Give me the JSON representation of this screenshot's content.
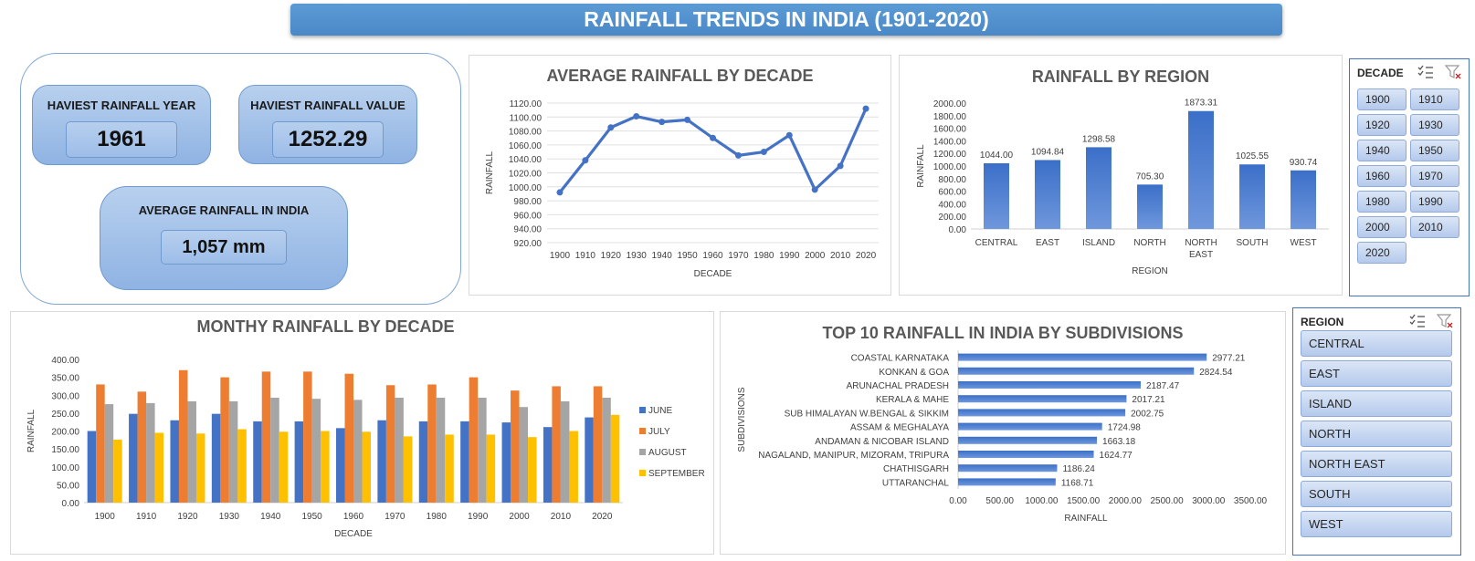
{
  "dashboard": {
    "title": "RAINFALL TRENDS IN INDIA (1901-2020)"
  },
  "kpis": {
    "heaviest_year_label": "HAVIEST RAINFALL YEAR",
    "heaviest_year_value": "1961",
    "heaviest_value_label": "HAVIEST RAINFALL VALUE",
    "heaviest_value_value": "1252.29",
    "average_label": "AVERAGE RAINFALL IN INDIA",
    "average_value": "1,057 mm"
  },
  "slicers": {
    "decade": {
      "header": "DECADE",
      "items": [
        "1900",
        "1910",
        "1920",
        "1930",
        "1940",
        "1950",
        "1960",
        "1970",
        "1980",
        "1990",
        "2000",
        "2010",
        "2020"
      ]
    },
    "region": {
      "header": "REGION",
      "items": [
        "CENTRAL",
        "EAST",
        "ISLAND",
        "NORTH",
        "NORTH EAST",
        "SOUTH",
        "WEST"
      ]
    }
  },
  "colors": {
    "series_blue": "#4472c4",
    "series_orange": "#ed7d31",
    "series_gray": "#a5a5a5",
    "series_yellow": "#ffc000",
    "line_blue": "#4472c4"
  },
  "chart_data": [
    {
      "id": "avg_by_decade",
      "type": "line",
      "title": "AVERAGE RAINFALL BY DECADE",
      "xlabel": "DECADE",
      "ylabel": "RAINFALL",
      "categories": [
        "1900",
        "1910",
        "1920",
        "1930",
        "1940",
        "1950",
        "1960",
        "1970",
        "1980",
        "1990",
        "2000",
        "2010",
        "2020"
      ],
      "values": [
        992,
        1038,
        1085,
        1101,
        1093,
        1096,
        1070,
        1045,
        1050,
        1074,
        996,
        1030,
        1112
      ],
      "ylim": [
        920,
        1120
      ],
      "yticks": [
        "920.00",
        "940.00",
        "960.00",
        "980.00",
        "1000.00",
        "1020.00",
        "1040.00",
        "1060.00",
        "1080.00",
        "1100.00",
        "1120.00"
      ],
      "grid": true
    },
    {
      "id": "by_region",
      "type": "bar",
      "title": "RAINFALL BY REGION",
      "xlabel": "REGION",
      "ylabel": "RAINFALL",
      "categories": [
        "CENTRAL",
        "EAST",
        "ISLAND",
        "NORTH",
        "NORTH EAST",
        "SOUTH",
        "WEST"
      ],
      "values": [
        1044.0,
        1094.84,
        1298.58,
        705.3,
        1873.31,
        1025.55,
        930.74
      ],
      "data_labels": [
        "1044.00",
        "1094.84",
        "1298.58",
        "705.30",
        "1873.31",
        "1025.55",
        "930.74"
      ],
      "ylim": [
        0,
        2000
      ],
      "yticks": [
        "0.00",
        "200.00",
        "400.00",
        "600.00",
        "800.00",
        "1000.00",
        "1200.00",
        "1400.00",
        "1600.00",
        "1800.00",
        "2000.00"
      ]
    },
    {
      "id": "monthly_by_decade",
      "type": "bar",
      "title": "MONTHY RAINFALL BY DECADE",
      "xlabel": "DECADE",
      "ylabel": "RAINFALL",
      "categories": [
        "1900",
        "1910",
        "1920",
        "1930",
        "1940",
        "1950",
        "1960",
        "1970",
        "1980",
        "1990",
        "2000",
        "2010",
        "2020"
      ],
      "series": [
        {
          "name": "JUNE",
          "values": [
            200,
            248,
            230,
            248,
            227,
            227,
            208,
            230,
            227,
            227,
            224,
            211,
            238
          ]
        },
        {
          "name": "JULY",
          "values": [
            330,
            310,
            370,
            350,
            366,
            366,
            360,
            328,
            330,
            350,
            313,
            325,
            325
          ]
        },
        {
          "name": "AUGUST",
          "values": [
            275,
            278,
            283,
            283,
            293,
            290,
            287,
            293,
            293,
            293,
            267,
            283,
            293
          ]
        },
        {
          "name": "SEPTEMBER",
          "values": [
            176,
            195,
            193,
            205,
            198,
            200,
            198,
            185,
            190,
            190,
            183,
            200,
            245
          ]
        }
      ],
      "ylim": [
        0,
        400
      ],
      "yticks": [
        "0.00",
        "50.00",
        "100.00",
        "150.00",
        "200.00",
        "250.00",
        "300.00",
        "350.00",
        "400.00"
      ],
      "legend": "right"
    },
    {
      "id": "top10_subdivisions",
      "type": "bar",
      "orientation": "horizontal",
      "title": "TOP 10 RAINFALL IN INDIA BY SUBDIVISIONS",
      "xlabel": "RAINFALL",
      "ylabel": "SUBDIVISIONS",
      "categories": [
        "COASTAL KARNATAKA",
        "KONKAN & GOA",
        "ARUNACHAL PRADESH",
        "KERALA & MAHE",
        "SUB HIMALAYAN W.BENGAL & SIKKIM",
        "ASSAM & MEGHALAYA",
        "ANDAMAN & NICOBAR ISLAND",
        "NAGALAND, MANIPUR, MIZORAM, TRIPURA",
        "CHATHISGARH",
        "UTTARANCHAL"
      ],
      "values": [
        2977.21,
        2824.54,
        2187.47,
        2017.21,
        2002.75,
        1724.98,
        1663.18,
        1624.77,
        1186.24,
        1168.71
      ],
      "data_labels": [
        "2977.21",
        "2824.54",
        "2187.47",
        "2017.21",
        "2002.75",
        "1724.98",
        "1663.18",
        "1624.77",
        "1186.24",
        "1168.71"
      ],
      "xlim": [
        0,
        3500
      ],
      "xticks": [
        "0.00",
        "500.00",
        "1000.00",
        "1500.00",
        "2000.00",
        "2500.00",
        "3000.00",
        "3500.00"
      ]
    }
  ]
}
